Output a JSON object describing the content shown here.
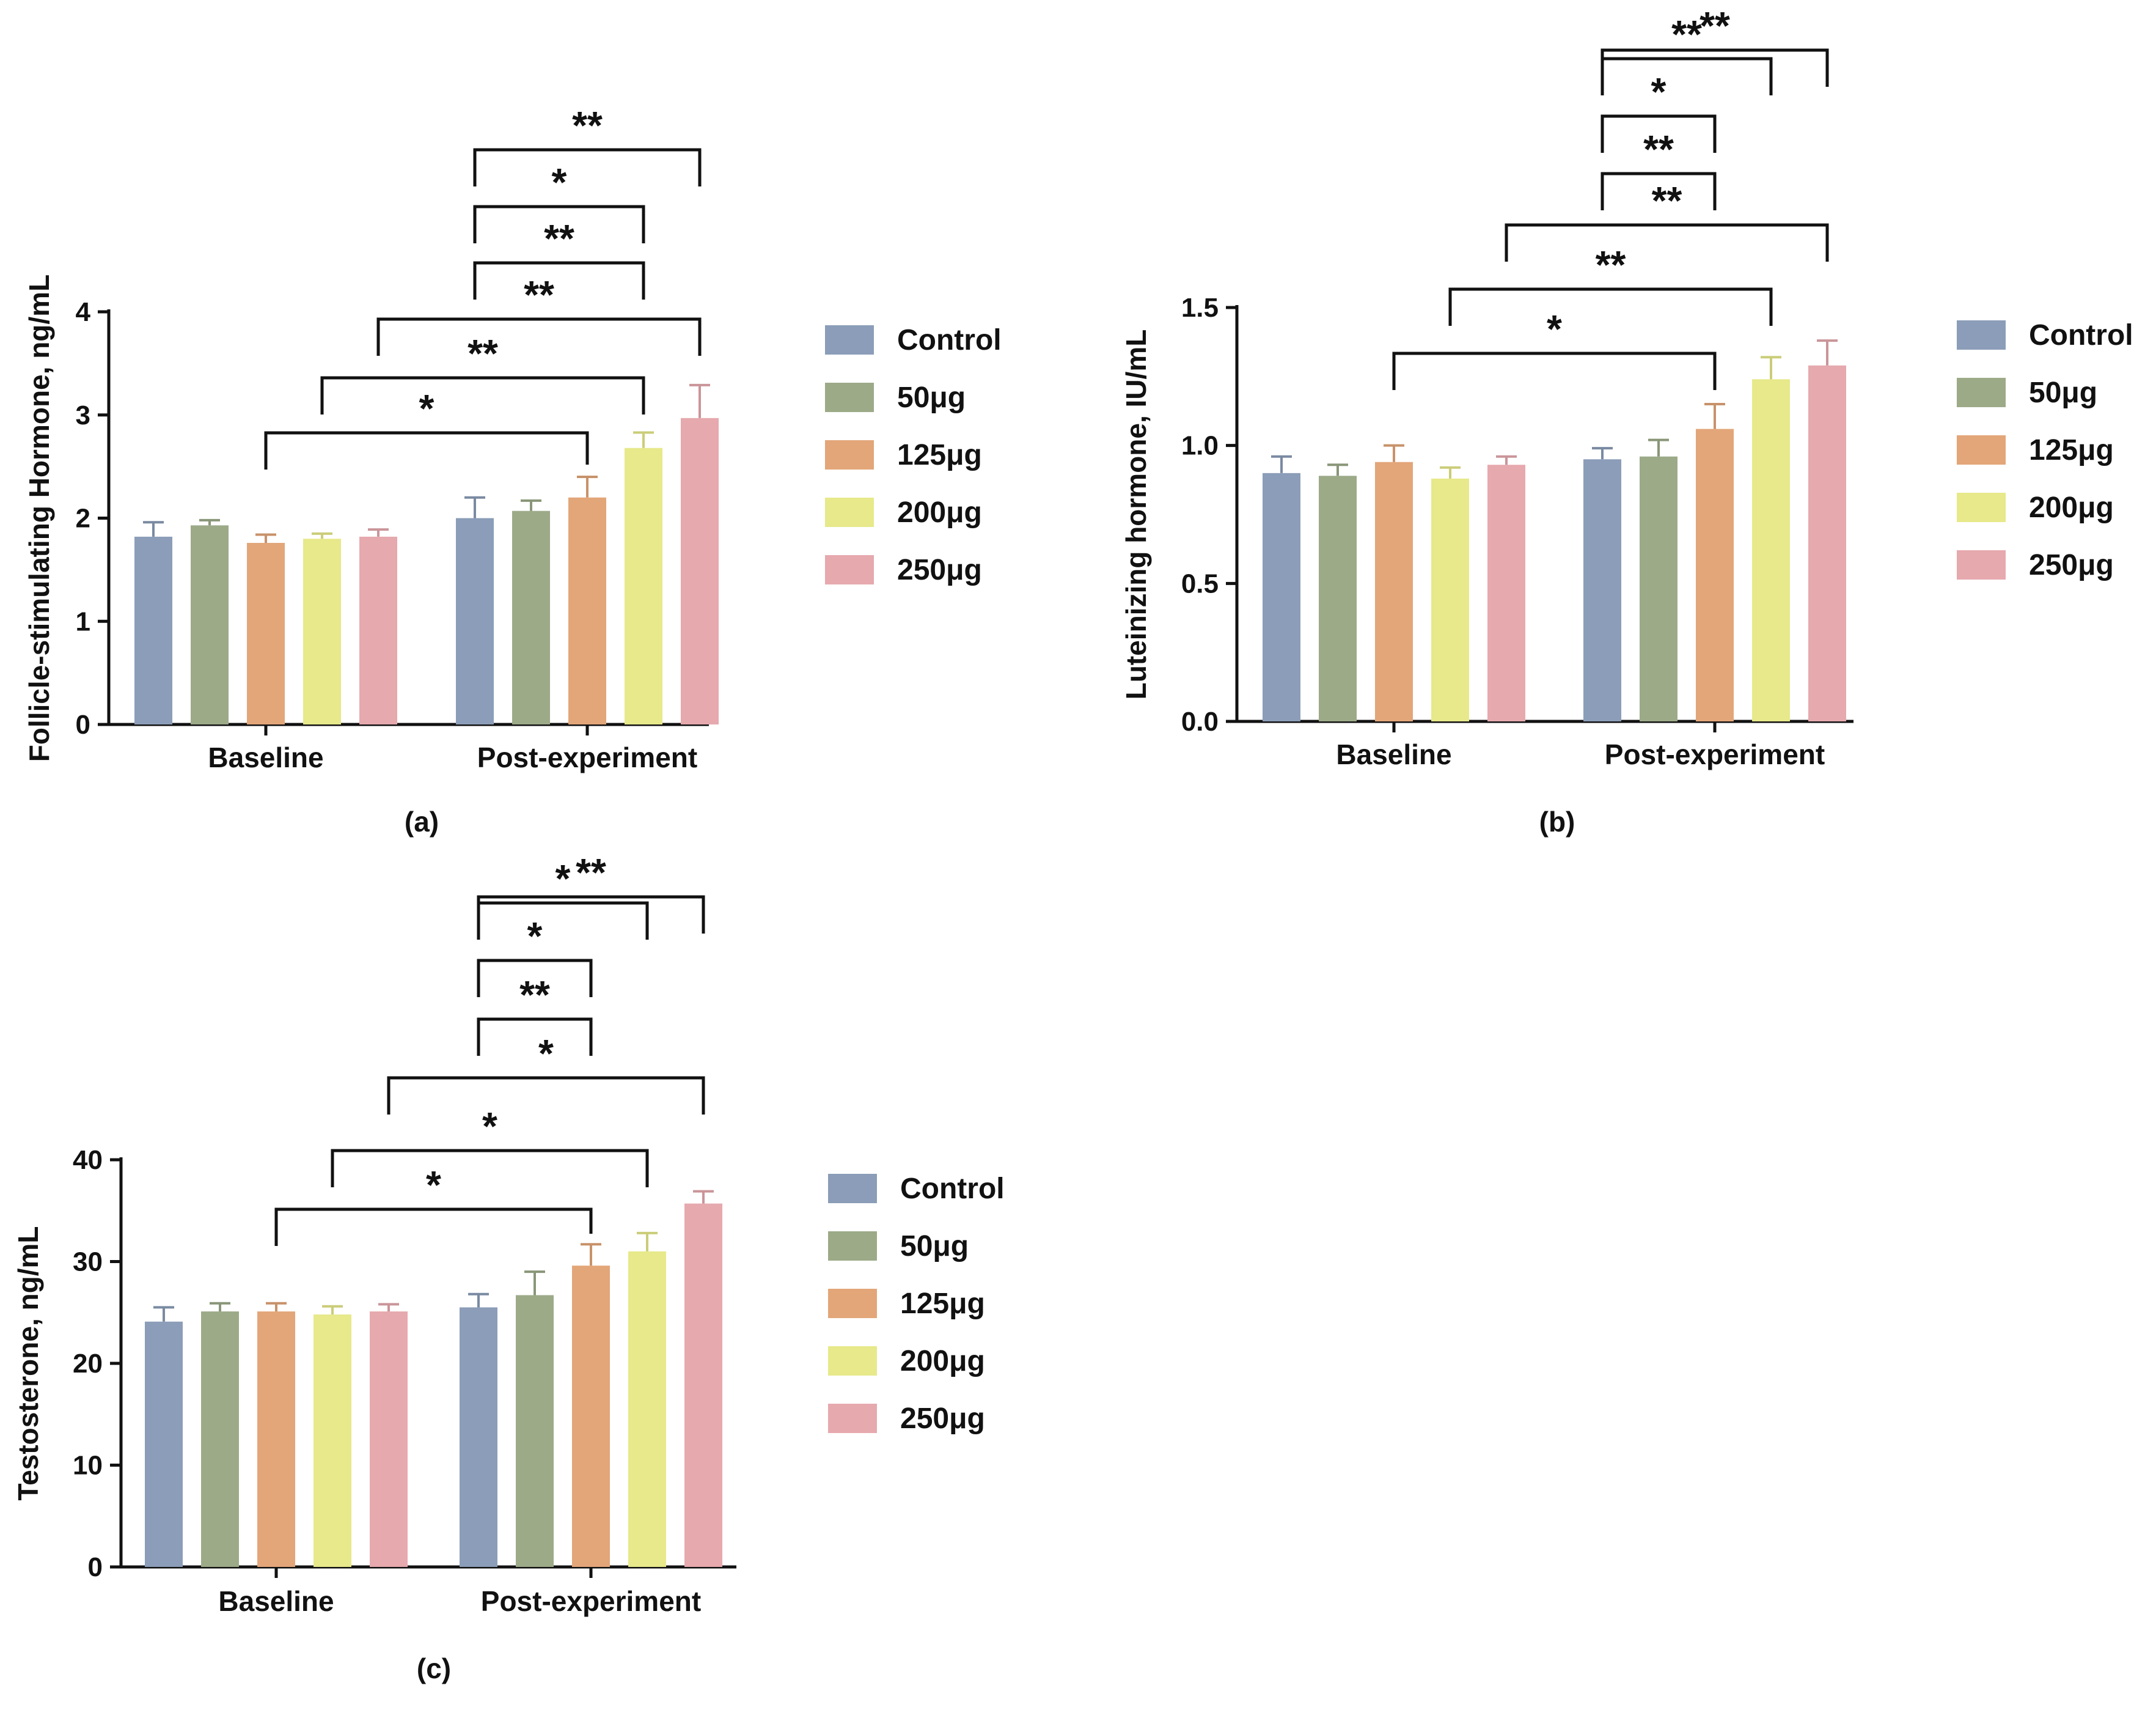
{
  "legend": {
    "labels": [
      "Control",
      "50μg",
      "125μg",
      "200μg",
      "250μg"
    ]
  },
  "colors": {
    "Control": "#8b9db8",
    "50μg": "#9caa88",
    "125μg": "#e3a679",
    "200μg": "#e7e98a",
    "250μg": "#e6a9ae"
  },
  "chart_data": [
    {
      "type": "bar",
      "panel_label": "(a)",
      "ylabel": "Follicle-stimulating Hormone, ng/mL",
      "categories": [
        "Baseline",
        "Post-experiment"
      ],
      "ylim": [
        0,
        4
      ],
      "yticks": [
        0,
        1,
        2,
        3,
        4
      ],
      "series": [
        {
          "name": "Control",
          "values": [
            1.82,
            2.0
          ],
          "errors": [
            0.14,
            0.2
          ]
        },
        {
          "name": "50μg",
          "values": [
            1.93,
            2.07
          ],
          "errors": [
            0.05,
            0.1
          ]
        },
        {
          "name": "125μg",
          "values": [
            1.76,
            2.2
          ],
          "errors": [
            0.08,
            0.2
          ]
        },
        {
          "name": "200μg",
          "values": [
            1.8,
            2.68
          ],
          "errors": [
            0.05,
            0.15
          ]
        },
        {
          "name": "250μg",
          "values": [
            1.82,
            2.97
          ],
          "errors": [
            0.07,
            0.32
          ]
        }
      ],
      "annotations": [
        {
          "label": "*",
          "from": [
            "Baseline",
            "125μg"
          ],
          "to": [
            "Post-experiment",
            "125μg"
          ]
        },
        {
          "label": "**",
          "from": [
            "Baseline",
            "200μg"
          ],
          "to": [
            "Post-experiment",
            "200μg"
          ]
        },
        {
          "label": "**",
          "from": [
            "Baseline",
            "250μg"
          ],
          "to": [
            "Post-experiment",
            "250μg"
          ]
        },
        {
          "label": "**",
          "from": [
            "Post-experiment",
            "Control"
          ],
          "to": [
            "Post-experiment",
            "200μg"
          ]
        },
        {
          "label": "*",
          "from": [
            "Post-experiment",
            "Control"
          ],
          "to": [
            "Post-experiment",
            "200μg"
          ]
        },
        {
          "label": "**",
          "from": [
            "Post-experiment",
            "Control"
          ],
          "to": [
            "Post-experiment",
            "250μg"
          ]
        }
      ]
    },
    {
      "type": "bar",
      "panel_label": "(b)",
      "ylabel": "Luteinizing hormone, IU/mL",
      "categories": [
        "Baseline",
        "Post-experiment"
      ],
      "ylim": [
        0,
        1.5
      ],
      "yticks": [
        0.0,
        0.5,
        1.0,
        1.5
      ],
      "ytick_labels": [
        "0.0",
        "0.5",
        "1.0",
        "1.5"
      ],
      "series": [
        {
          "name": "Control",
          "values": [
            0.9,
            0.95
          ],
          "errors": [
            0.06,
            0.04
          ]
        },
        {
          "name": "50μg",
          "values": [
            0.89,
            0.96
          ],
          "errors": [
            0.04,
            0.06
          ]
        },
        {
          "name": "125μg",
          "values": [
            0.94,
            1.06
          ],
          "errors": [
            0.06,
            0.09
          ]
        },
        {
          "name": "200μg",
          "values": [
            0.88,
            1.24
          ],
          "errors": [
            0.04,
            0.08
          ]
        },
        {
          "name": "250μg",
          "values": [
            0.93,
            1.29
          ],
          "errors": [
            0.03,
            0.09
          ]
        }
      ],
      "annotations": [
        {
          "label": "*",
          "from": [
            "Baseline",
            "125μg"
          ],
          "to": [
            "Post-experiment",
            "125μg"
          ]
        },
        {
          "label": "**",
          "from": [
            "Baseline",
            "200μg"
          ],
          "to": [
            "Post-experiment",
            "200μg"
          ]
        },
        {
          "label": "**",
          "from": [
            "Baseline",
            "250μg"
          ],
          "to": [
            "Post-experiment",
            "250μg"
          ]
        },
        {
          "label": "**",
          "from": [
            "Post-experiment",
            "Control"
          ],
          "to": [
            "Post-experiment",
            "125μg"
          ]
        },
        {
          "label": "*",
          "from": [
            "Post-experiment",
            "Control"
          ],
          "to": [
            "Post-experiment",
            "125μg"
          ]
        },
        {
          "label": "**",
          "from": [
            "Post-experiment",
            "Control"
          ],
          "to": [
            "Post-experiment",
            "200μg"
          ]
        },
        {
          "label": "**",
          "from": [
            "Post-experiment",
            "Control"
          ],
          "to": [
            "Post-experiment",
            "250μg"
          ]
        }
      ]
    },
    {
      "type": "bar",
      "panel_label": "(c)",
      "ylabel": "Testosterone, ng/mL",
      "categories": [
        "Baseline",
        "Post-experiment"
      ],
      "ylim": [
        0,
        40
      ],
      "yticks": [
        0,
        10,
        20,
        30,
        40
      ],
      "series": [
        {
          "name": "Control",
          "values": [
            24.1,
            25.5
          ],
          "errors": [
            1.4,
            1.3
          ]
        },
        {
          "name": "50μg",
          "values": [
            25.1,
            26.7
          ],
          "errors": [
            0.8,
            2.3
          ]
        },
        {
          "name": "125μg",
          "values": [
            25.1,
            29.6
          ],
          "errors": [
            0.8,
            2.1
          ]
        },
        {
          "name": "200μg",
          "values": [
            24.8,
            31.0
          ],
          "errors": [
            0.8,
            1.8
          ]
        },
        {
          "name": "250μg",
          "values": [
            25.1,
            35.7
          ],
          "errors": [
            0.7,
            1.2
          ]
        }
      ],
      "annotations": [
        {
          "label": "*",
          "from": [
            "Baseline",
            "125μg"
          ],
          "to": [
            "Post-experiment",
            "125μg"
          ]
        },
        {
          "label": "*",
          "from": [
            "Baseline",
            "200μg"
          ],
          "to": [
            "Post-experiment",
            "200μg"
          ]
        },
        {
          "label": "*",
          "from": [
            "Baseline",
            "250μg"
          ],
          "to": [
            "Post-experiment",
            "250μg"
          ]
        },
        {
          "label": "**",
          "from": [
            "Post-experiment",
            "Control"
          ],
          "to": [
            "Post-experiment",
            "125μg"
          ]
        },
        {
          "label": "*",
          "from": [
            "Post-experiment",
            "Control"
          ],
          "to": [
            "Post-experiment",
            "125μg"
          ]
        },
        {
          "label": "*",
          "from": [
            "Post-experiment",
            "Control"
          ],
          "to": [
            "Post-experiment",
            "200μg"
          ]
        },
        {
          "label": "**",
          "from": [
            "Post-experiment",
            "Control"
          ],
          "to": [
            "Post-experiment",
            "250μg"
          ]
        }
      ]
    }
  ]
}
